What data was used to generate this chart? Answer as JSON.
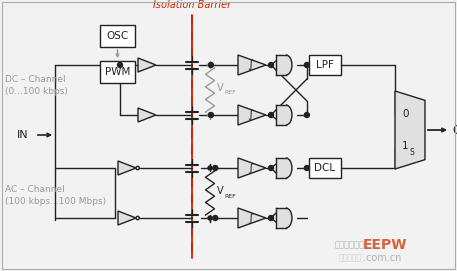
{
  "bg_color": "#f2f2f2",
  "line_color": "#333333",
  "gray_color": "#999999",
  "box_fill": "#e0e0e0",
  "iso_color": "#cc2200",
  "label_gray": "#999999",
  "white": "#ffffff",
  "black": "#222222",
  "title": "Isolation Barrier",
  "dc_label1": "DC – Channel",
  "dc_label2": "(0...100 kbps)",
  "ac_label1": "AC – Channel",
  "ac_label2": "(100 kbps...100 Mbps)",
  "in_label": "IN",
  "out_label": "OUT",
  "osc_label": "OSC",
  "pwm_label": "PWM",
  "lpf_label": "LPF",
  "dcl_label": "DCL",
  "vref_label": "V",
  "vref_sub": "REF",
  "zero_label": "0",
  "one_label": "1",
  "s_label": "S"
}
